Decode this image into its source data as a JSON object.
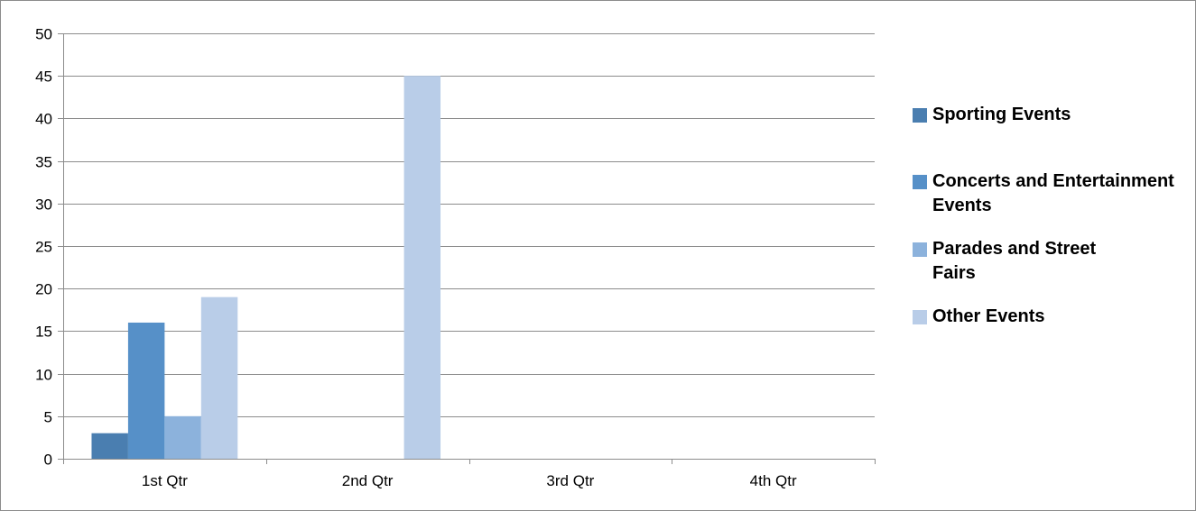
{
  "chart_data": {
    "type": "bar",
    "categories": [
      "1st Qtr",
      "2nd Qtr",
      "3rd Qtr",
      "4th Qtr"
    ],
    "series": [
      {
        "name": "Sporting Events",
        "values": [
          3,
          0,
          0,
          0
        ],
        "color": "#4a7eb0"
      },
      {
        "name": "Concerts and Entertainment Events",
        "values": [
          16,
          0,
          0,
          0
        ],
        "color": "#5690c8"
      },
      {
        "name": "Parades and Street Fairs",
        "values": [
          5,
          0,
          0,
          0
        ],
        "color": "#8cb2dc"
      },
      {
        "name": "Other Events",
        "values": [
          19,
          45,
          0,
          0
        ],
        "color": "#b9cde8"
      }
    ],
    "ylim": [
      0,
      50
    ],
    "yticks": [
      0,
      5,
      10,
      15,
      20,
      25,
      30,
      35,
      40,
      45,
      50
    ],
    "grid": true,
    "legend_position": "right"
  }
}
